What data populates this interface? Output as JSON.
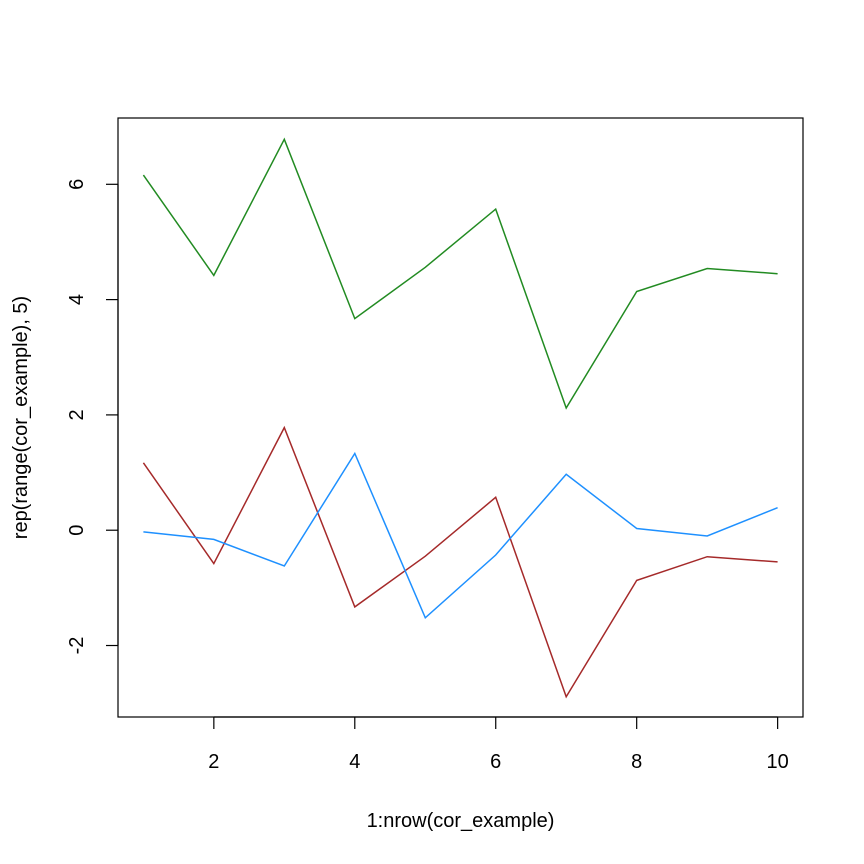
{
  "chart_data": {
    "type": "line",
    "title": "",
    "xlabel": "1:nrow(cor_example)",
    "ylabel": "rep(range(cor_example), 5)",
    "xlim": [
      0.64,
      10.36
    ],
    "ylim": [
      -3.24,
      7.15
    ],
    "x": [
      1,
      2,
      3,
      4,
      5,
      6,
      7,
      8,
      9,
      10
    ],
    "x_ticks": [
      2,
      4,
      6,
      8,
      10
    ],
    "y_ticks": [
      -2,
      0,
      2,
      4,
      6
    ],
    "grid": false,
    "legend": "none",
    "series": [
      {
        "color": "#228B22",
        "values": [
          6.16,
          4.42,
          6.78,
          3.67,
          4.56,
          5.57,
          2.12,
          4.14,
          4.54,
          4.45
        ]
      },
      {
        "color": "#A52A2A",
        "values": [
          1.17,
          -0.58,
          1.78,
          -1.33,
          -0.45,
          0.57,
          -2.89,
          -0.87,
          -0.46,
          -0.55
        ]
      },
      {
        "color": "#1E90FF",
        "values": [
          -0.03,
          -0.16,
          -0.62,
          1.33,
          -1.52,
          -0.43,
          0.97,
          0.03,
          -0.1,
          0.39
        ]
      }
    ]
  }
}
